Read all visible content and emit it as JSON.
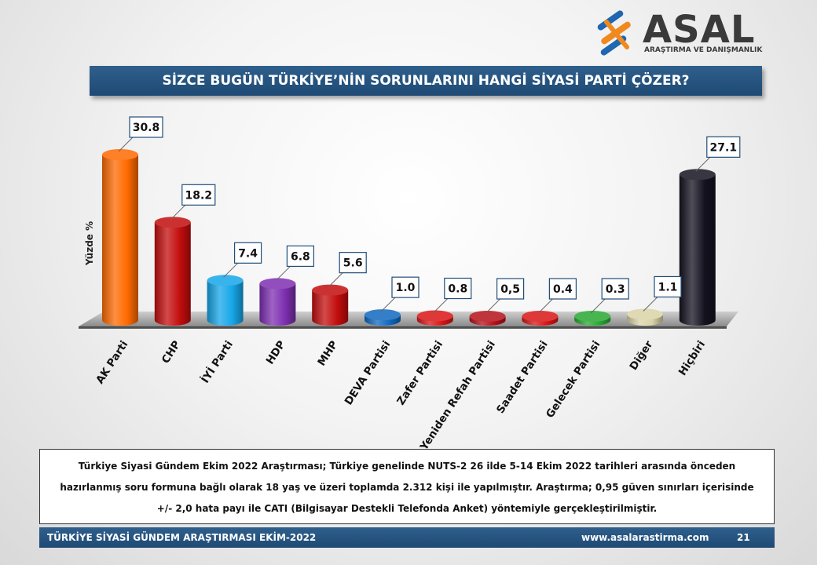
{
  "brand": {
    "name": "ASAL",
    "tagline": "ARAŞTIRMA VE DANIŞMANLIK",
    "colors": {
      "blue": "#1f67b0",
      "orange": "#f08a1e",
      "dark": "#3a3a3a"
    }
  },
  "title": "SİZCE BUGÜN TÜRKİYE’NİN SORUNLARINI HANGİ SİYASİ PARTİ ÇÖZER?",
  "chart_data": {
    "type": "bar",
    "ylabel": "Yüzde  %",
    "categories": [
      "AK Parti",
      "CHP",
      "İYİ Parti",
      "HDP",
      "MHP",
      "DEVA Partisi",
      "Zafer Partisi",
      "Yeniden Refah Partisi",
      "Saadet Partisi",
      "Gelecek Partisi",
      "Diğer",
      "Hiçbiri"
    ],
    "values": [
      30.8,
      18.2,
      7.4,
      6.8,
      5.6,
      1.0,
      0.8,
      0.5,
      0.4,
      0.3,
      1.1,
      27.1
    ],
    "labels": [
      "30.8",
      "18.2",
      "7.4",
      "6.8",
      "5.6",
      "1.0",
      "0.8",
      "0,5",
      "0.4",
      "0.3",
      "1.1",
      "27.1"
    ],
    "colors": [
      "#ff6a00",
      "#c30d0d",
      "#16a6e8",
      "#7d2fb0",
      "#c30d0d",
      "#1168c0",
      "#d81515",
      "#b5101a",
      "#d81515",
      "#28a832",
      "#d9d3a6",
      "#14121f"
    ]
  },
  "footnote": "Türkiye Siyasi Gündem Ekim 2022 Araştırması; Türkiye genelinde NUTS-2 26 ilde 5-14 Ekim 2022 tarihleri arasında önceden hazırlanmış soru formuna bağlı olarak 18 yaş ve üzeri toplamda 2.312 kişi ile yapılmıştır. Araştırma; 0,95 güven sınırları içerisinde +/- 2,0 hata payı ile CATI (Bilgisayar Destekli Telefonda Anket) yöntemiyle gerçekleştirilmiştir.",
  "footer": {
    "left": "TÜRKİYE SİYASİ GÜNDEM ARAŞTIRMASI EKİM-2022",
    "url": "www.asalarastirma.com",
    "page": "21"
  }
}
